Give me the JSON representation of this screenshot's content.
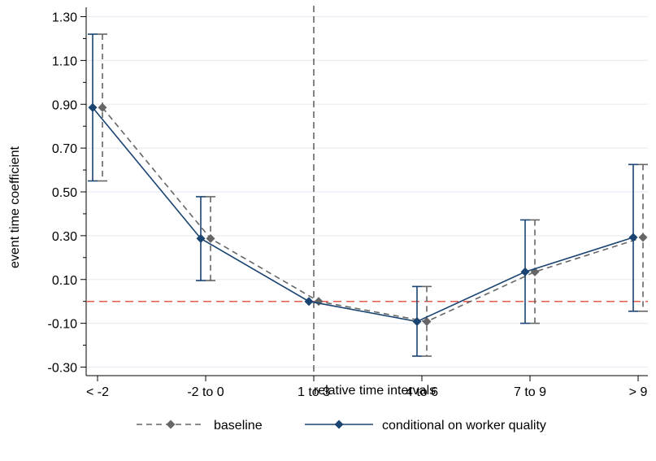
{
  "chart_data": {
    "type": "line",
    "xlabel": "relative time intervals",
    "ylabel": "event time coefficient",
    "categories": [
      "< -2",
      "-2 to 0",
      "1 to 3",
      "4 to 6",
      "7 to 9",
      "> 9"
    ],
    "ylim": [
      -0.36,
      1.36
    ],
    "yticks": [
      -0.3,
      -0.1,
      0.1,
      0.3,
      0.5,
      0.7,
      0.9,
      1.1,
      1.3
    ],
    "ytick_labels": [
      "-0.30",
      "-0.10",
      "0.10",
      "0.30",
      "0.50",
      "0.70",
      "0.90",
      "1.10",
      "1.30"
    ],
    "grid": true,
    "legend_position": "bottom",
    "vertical_reference_category": "1 to 3",
    "horizontal_reference_y": 0,
    "series": [
      {
        "name": "baseline",
        "color": "#666666",
        "line_style": "dashed",
        "values": [
          0.885,
          0.287,
          0.0,
          -0.092,
          0.135,
          0.292
        ],
        "ci_low": [
          0.55,
          0.095,
          0.0,
          -0.25,
          -0.1,
          -0.045
        ],
        "ci_high": [
          1.22,
          0.478,
          0.0,
          0.068,
          0.372,
          0.625
        ]
      },
      {
        "name": "conditional on worker quality",
        "color": "#1a4471",
        "line_style": "solid",
        "values": [
          0.885,
          0.287,
          0.0,
          -0.092,
          0.135,
          0.292
        ],
        "ci_low": [
          0.55,
          0.095,
          0.0,
          -0.25,
          -0.1,
          -0.045
        ],
        "ci_high": [
          1.22,
          0.478,
          0.0,
          0.068,
          0.372,
          0.625
        ]
      }
    ],
    "colors": {
      "grid": "#e8eef3",
      "reference_vertical": "#444444",
      "reference_horizontal": "#e8584f"
    }
  }
}
